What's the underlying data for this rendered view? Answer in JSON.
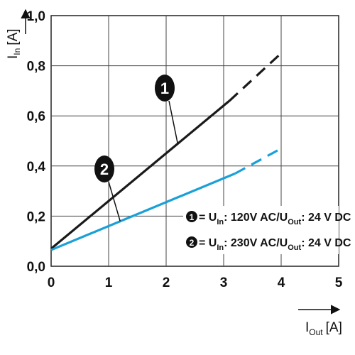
{
  "chart_data": {
    "type": "line",
    "xlabel": {
      "main": "I",
      "sub": "Out",
      "unit": "[A]"
    },
    "ylabel": {
      "main": "I",
      "sub": "In",
      "unit": "[A]"
    },
    "xlim": [
      0,
      5
    ],
    "ylim": [
      0,
      1.0
    ],
    "xticks": [
      "0",
      "1",
      "2",
      "3",
      "4",
      "5"
    ],
    "yticks": [
      "0,0",
      "0,2",
      "0,4",
      "0,6",
      "0,8",
      "1,0"
    ],
    "grid": true,
    "series": [
      {
        "id": "1",
        "color": "#1a1a1a",
        "solid": {
          "x": [
            0,
            3.1
          ],
          "y": [
            0.07,
            0.66
          ]
        },
        "dashed": {
          "x": [
            3.1,
            4.0
          ],
          "y": [
            0.66,
            0.85
          ]
        }
      },
      {
        "id": "2",
        "color": "#1aa0d8",
        "solid": {
          "x": [
            0,
            3.2
          ],
          "y": [
            0.065,
            0.37
          ]
        },
        "dashed": {
          "x": [
            3.2,
            4.0
          ],
          "y": [
            0.37,
            0.47
          ]
        }
      }
    ],
    "callouts": [
      {
        "id": "1",
        "target": [
          2.2,
          0.49
        ]
      },
      {
        "id": "2",
        "target": [
          1.2,
          0.18
        ]
      }
    ],
    "legend": {
      "placement": "bottom-right",
      "entries": [
        {
          "badge": "1",
          "prefix": "= U",
          "in_sub": "In",
          "mid": ": 120V AC/U",
          "out_sub": "Out",
          "suffix": ": 24 V DC"
        },
        {
          "badge": "2",
          "prefix": "= U",
          "in_sub": "In",
          "mid": ": 230V AC/U",
          "out_sub": "Out",
          "suffix": ": 24 V DC"
        }
      ]
    }
  }
}
